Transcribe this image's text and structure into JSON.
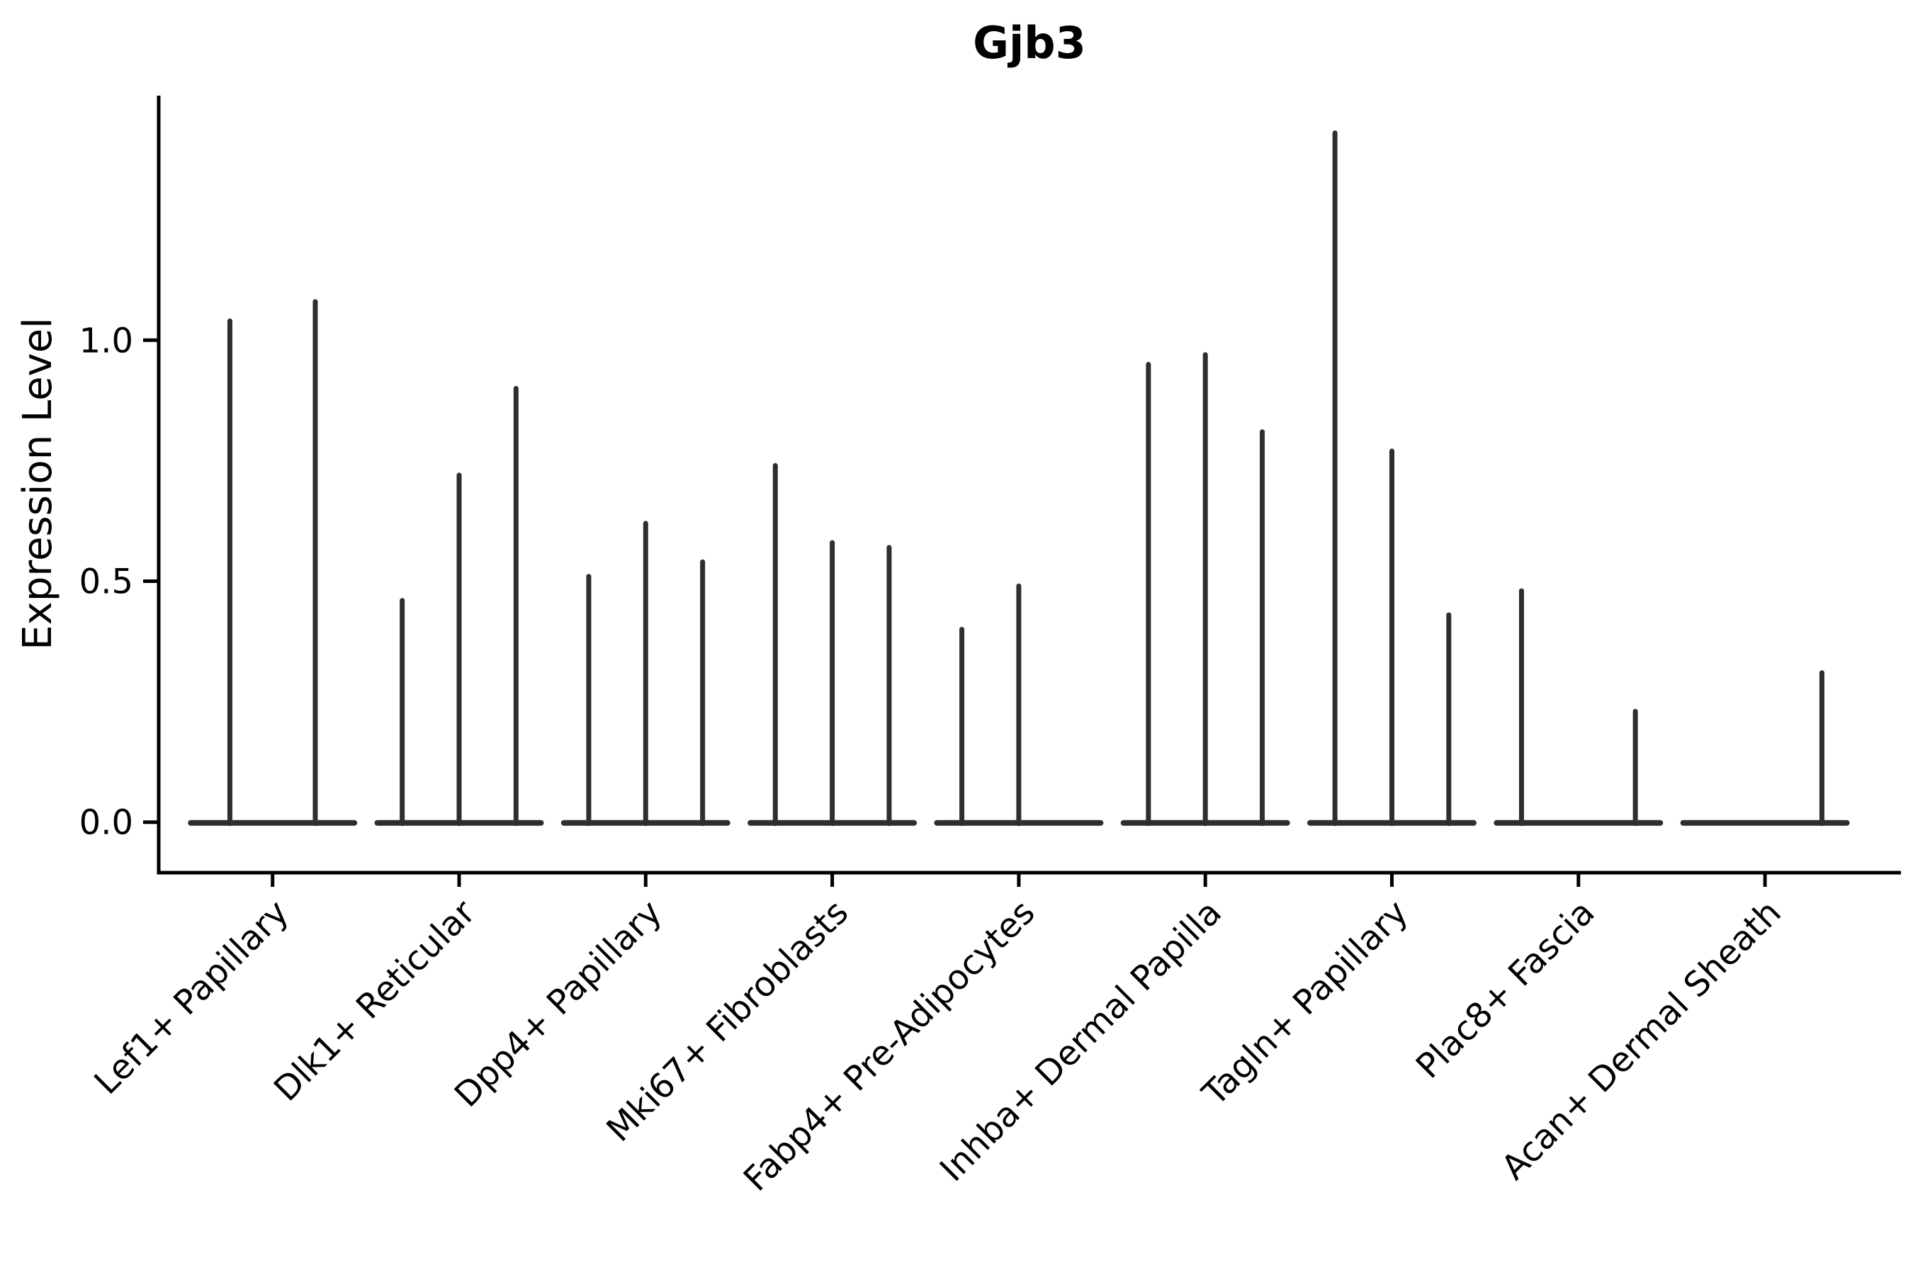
{
  "title": "Gjb3",
  "ylabel": "Expression Level",
  "colors": {
    "violin": "#2e2e2e",
    "axis": "#000000",
    "text": "#000000",
    "background": "#ffffff"
  },
  "chart_data": {
    "type": "violin",
    "title": "Gjb3",
    "xlabel": "",
    "ylabel": "Expression Level",
    "yticks": [
      0.0,
      0.5,
      1.0
    ],
    "ylim": [
      -0.06,
      1.52
    ],
    "grid": false,
    "legend": "none",
    "style": "thin spike violins: each violin is a flat density lens at 0 plus a narrow vertical spike up to the max expression value; categories are split into 2-3 sub-violins",
    "categories": [
      "Lef1+ Papillary",
      "Dlk1+ Reticular",
      "Dpp4+ Papillary",
      "Mki67+ Fibroblasts",
      "Fabp4+ Pre-Adipocytes",
      "Inhba+ Dermal Papilla",
      "Tagln+ Papillary",
      "Plac8+ Fascia",
      "Acan+ Dermal Sheath"
    ],
    "groups": [
      {
        "category": "Lef1+ Papillary",
        "violin_peaks": [
          1.04,
          1.08
        ]
      },
      {
        "category": "Dlk1+ Reticular",
        "violin_peaks": [
          0.46,
          0.72,
          0.9
        ]
      },
      {
        "category": "Dpp4+ Papillary",
        "violin_peaks": [
          0.51,
          0.62,
          0.54
        ]
      },
      {
        "category": "Mki67+ Fibroblasts",
        "violin_peaks": [
          0.74,
          0.58,
          0.57
        ]
      },
      {
        "category": "Fabp4+ Pre-Adipocytes",
        "violin_peaks": [
          0.4,
          0.49,
          0.0
        ]
      },
      {
        "category": "Inhba+ Dermal Papilla",
        "violin_peaks": [
          0.95,
          0.97,
          0.81
        ]
      },
      {
        "category": "Tagln+ Papillary",
        "violin_peaks": [
          1.43,
          0.77,
          0.43
        ]
      },
      {
        "category": "Plac8+ Fascia",
        "violin_peaks": [
          0.48,
          0.0,
          0.23
        ]
      },
      {
        "category": "Acan+ Dermal Sheath",
        "violin_peaks": [
          0.0,
          0.0,
          0.31
        ]
      }
    ]
  }
}
